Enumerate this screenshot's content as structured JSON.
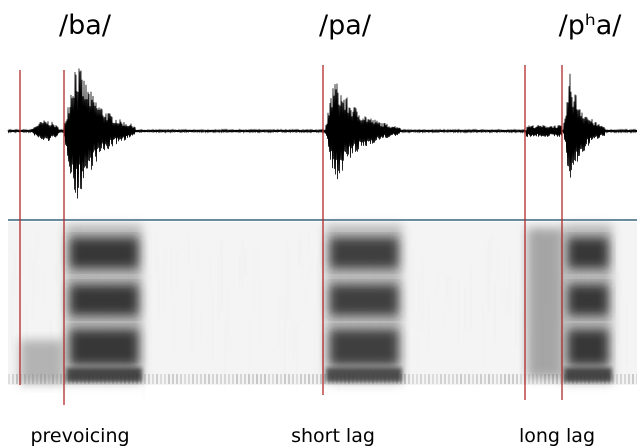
{
  "titles": [
    "/ba/",
    "/pa/",
    "/pʰa/"
  ],
  "labels": [
    "prevoicing",
    "short lag",
    "long lag"
  ]
}
